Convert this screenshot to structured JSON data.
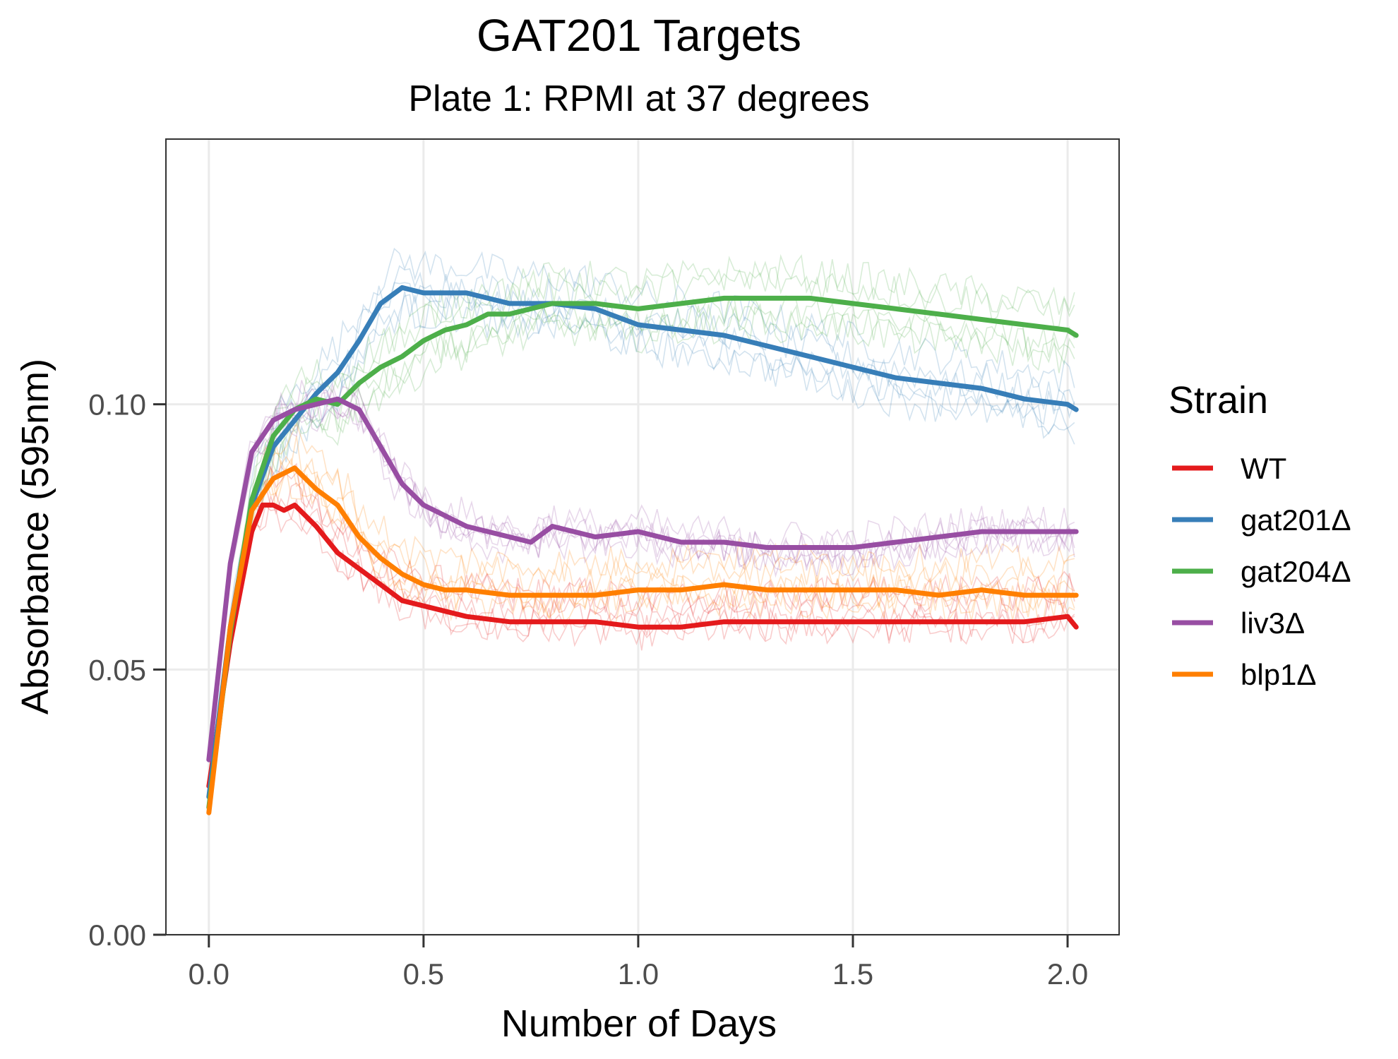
{
  "chart_data": {
    "type": "line",
    "title": "GAT201 Targets",
    "subtitle": "Plate 1: RPMI at 37 degrees",
    "xlabel": "Number of Days",
    "ylabel": "Absorbance (595nm)",
    "xlim": [
      -0.1,
      2.12
    ],
    "ylim": [
      0.0,
      0.15
    ],
    "x_ticks": [
      0.0,
      0.5,
      1.0,
      1.5,
      2.0
    ],
    "x_tick_labels": [
      "0.0",
      "0.5",
      "1.0",
      "1.5",
      "2.0"
    ],
    "y_ticks": [
      0.0,
      0.05,
      0.1
    ],
    "y_tick_labels": [
      "0.00",
      "0.05",
      "0.10"
    ],
    "grid": true,
    "legend": {
      "title": "Strain",
      "placement": "right"
    },
    "series": [
      {
        "name": "WT",
        "color": "#e41a1c",
        "x": [
          0.0,
          0.05,
          0.1,
          0.125,
          0.15,
          0.175,
          0.2,
          0.225,
          0.25,
          0.3,
          0.35,
          0.4,
          0.45,
          0.5,
          0.55,
          0.6,
          0.7,
          0.8,
          0.9,
          1.0,
          1.1,
          1.2,
          1.3,
          1.4,
          1.5,
          1.6,
          1.7,
          1.8,
          1.9,
          2.0,
          2.02
        ],
        "values": [
          0.028,
          0.055,
          0.076,
          0.081,
          0.081,
          0.08,
          0.081,
          0.079,
          0.077,
          0.072,
          0.069,
          0.066,
          0.063,
          0.062,
          0.061,
          0.06,
          0.059,
          0.059,
          0.059,
          0.058,
          0.058,
          0.059,
          0.059,
          0.059,
          0.059,
          0.059,
          0.059,
          0.059,
          0.059,
          0.06,
          0.058
        ]
      },
      {
        "name": "gat201Δ",
        "color": "#377eb8",
        "x": [
          0.0,
          0.05,
          0.1,
          0.15,
          0.2,
          0.25,
          0.3,
          0.35,
          0.4,
          0.45,
          0.5,
          0.55,
          0.6,
          0.65,
          0.7,
          0.8,
          0.9,
          1.0,
          1.1,
          1.2,
          1.3,
          1.4,
          1.5,
          1.6,
          1.7,
          1.8,
          1.9,
          2.0,
          2.02
        ],
        "values": [
          0.026,
          0.058,
          0.081,
          0.092,
          0.097,
          0.102,
          0.106,
          0.112,
          0.119,
          0.122,
          0.121,
          0.121,
          0.121,
          0.12,
          0.119,
          0.119,
          0.118,
          0.115,
          0.114,
          0.113,
          0.111,
          0.109,
          0.107,
          0.105,
          0.104,
          0.103,
          0.101,
          0.1,
          0.099
        ]
      },
      {
        "name": "gat204Δ",
        "color": "#4daf4a",
        "x": [
          0.0,
          0.05,
          0.1,
          0.15,
          0.2,
          0.25,
          0.3,
          0.35,
          0.4,
          0.45,
          0.5,
          0.55,
          0.6,
          0.65,
          0.7,
          0.8,
          0.9,
          1.0,
          1.1,
          1.2,
          1.3,
          1.4,
          1.5,
          1.6,
          1.7,
          1.8,
          1.9,
          2.0,
          2.02
        ],
        "values": [
          0.024,
          0.057,
          0.082,
          0.094,
          0.099,
          0.101,
          0.1,
          0.104,
          0.107,
          0.109,
          0.112,
          0.114,
          0.115,
          0.117,
          0.117,
          0.119,
          0.119,
          0.118,
          0.119,
          0.12,
          0.12,
          0.12,
          0.119,
          0.118,
          0.117,
          0.116,
          0.115,
          0.114,
          0.113
        ]
      },
      {
        "name": "liv3Δ",
        "color": "#984ea3",
        "x": [
          0.0,
          0.05,
          0.1,
          0.15,
          0.2,
          0.25,
          0.3,
          0.35,
          0.4,
          0.45,
          0.5,
          0.55,
          0.6,
          0.65,
          0.7,
          0.75,
          0.8,
          0.9,
          1.0,
          1.1,
          1.2,
          1.3,
          1.4,
          1.5,
          1.6,
          1.7,
          1.8,
          1.9,
          2.0,
          2.02
        ],
        "values": [
          0.033,
          0.07,
          0.091,
          0.097,
          0.099,
          0.1,
          0.101,
          0.099,
          0.092,
          0.085,
          0.081,
          0.079,
          0.077,
          0.076,
          0.075,
          0.074,
          0.077,
          0.075,
          0.076,
          0.074,
          0.074,
          0.073,
          0.073,
          0.073,
          0.074,
          0.075,
          0.076,
          0.076,
          0.076,
          0.076
        ]
      },
      {
        "name": "blp1Δ",
        "color": "#ff7f00",
        "x": [
          0.0,
          0.05,
          0.1,
          0.15,
          0.2,
          0.25,
          0.3,
          0.35,
          0.4,
          0.45,
          0.5,
          0.55,
          0.6,
          0.7,
          0.8,
          0.9,
          1.0,
          1.1,
          1.2,
          1.3,
          1.4,
          1.5,
          1.6,
          1.7,
          1.8,
          1.9,
          2.0,
          2.02
        ],
        "values": [
          0.023,
          0.058,
          0.08,
          0.086,
          0.088,
          0.084,
          0.081,
          0.075,
          0.071,
          0.068,
          0.066,
          0.065,
          0.065,
          0.064,
          0.064,
          0.064,
          0.065,
          0.065,
          0.066,
          0.065,
          0.065,
          0.065,
          0.065,
          0.064,
          0.065,
          0.064,
          0.064,
          0.064
        ]
      }
    ]
  }
}
